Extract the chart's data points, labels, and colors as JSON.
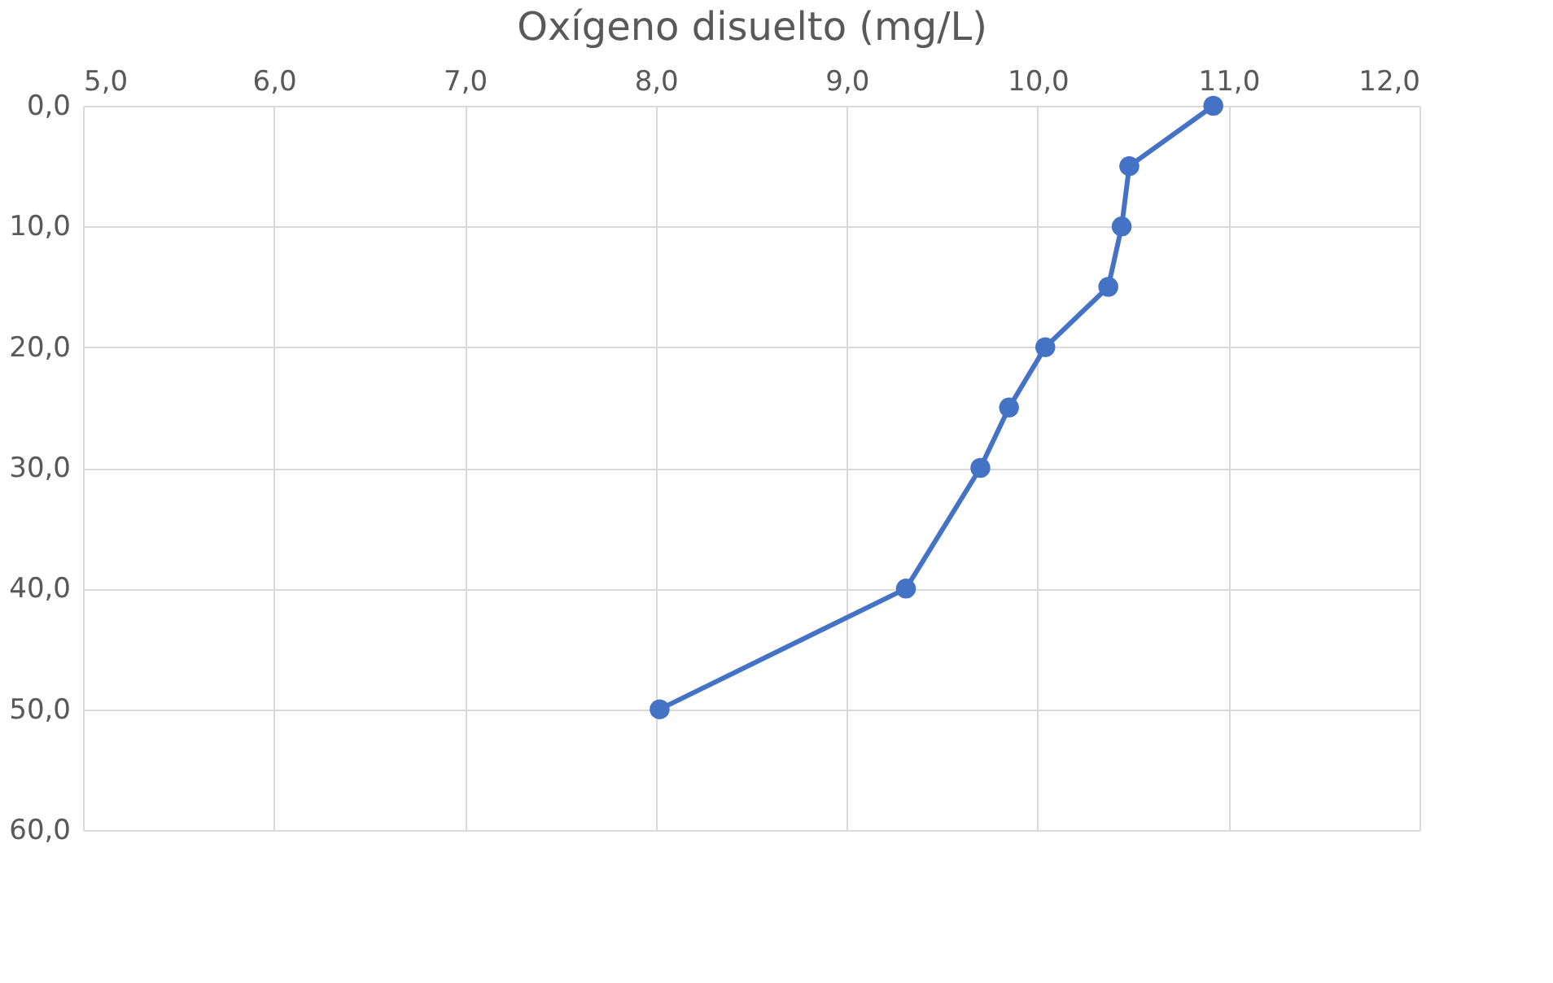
{
  "chart_data": {
    "type": "line",
    "xlabel": "Oxígeno disuelto (mg/L)",
    "x": [
      10.92,
      10.48,
      10.44,
      10.37,
      10.04,
      9.85,
      9.7,
      9.31,
      8.02
    ],
    "series": [
      {
        "color": "#4472c4",
        "values": [
          0,
          5,
          10,
          15,
          20,
          25,
          30,
          40,
          50
        ]
      }
    ],
    "xlim": [
      5,
      12
    ],
    "xticks": [
      {
        "value": 5,
        "label": "5,0"
      },
      {
        "value": 6,
        "label": "6,0"
      },
      {
        "value": 7,
        "label": "7,0"
      },
      {
        "value": 8,
        "label": "8,0"
      },
      {
        "value": 9,
        "label": "9,0"
      },
      {
        "value": 10,
        "label": "10,0"
      },
      {
        "value": 11,
        "label": "11,0"
      },
      {
        "value": 12,
        "label": "12,0"
      }
    ],
    "ylim": [
      60,
      0
    ],
    "yticks": [
      {
        "value": 0,
        "label": "0,0"
      },
      {
        "value": 10,
        "label": "10,0"
      },
      {
        "value": 20,
        "label": "20,0"
      },
      {
        "value": 30,
        "label": "30,0"
      },
      {
        "value": 40,
        "label": "40,0"
      },
      {
        "value": 50,
        "label": "50,0"
      },
      {
        "value": 60,
        "label": "60,0"
      }
    ],
    "grid": true,
    "marker": "circle",
    "line_style": "solid"
  }
}
